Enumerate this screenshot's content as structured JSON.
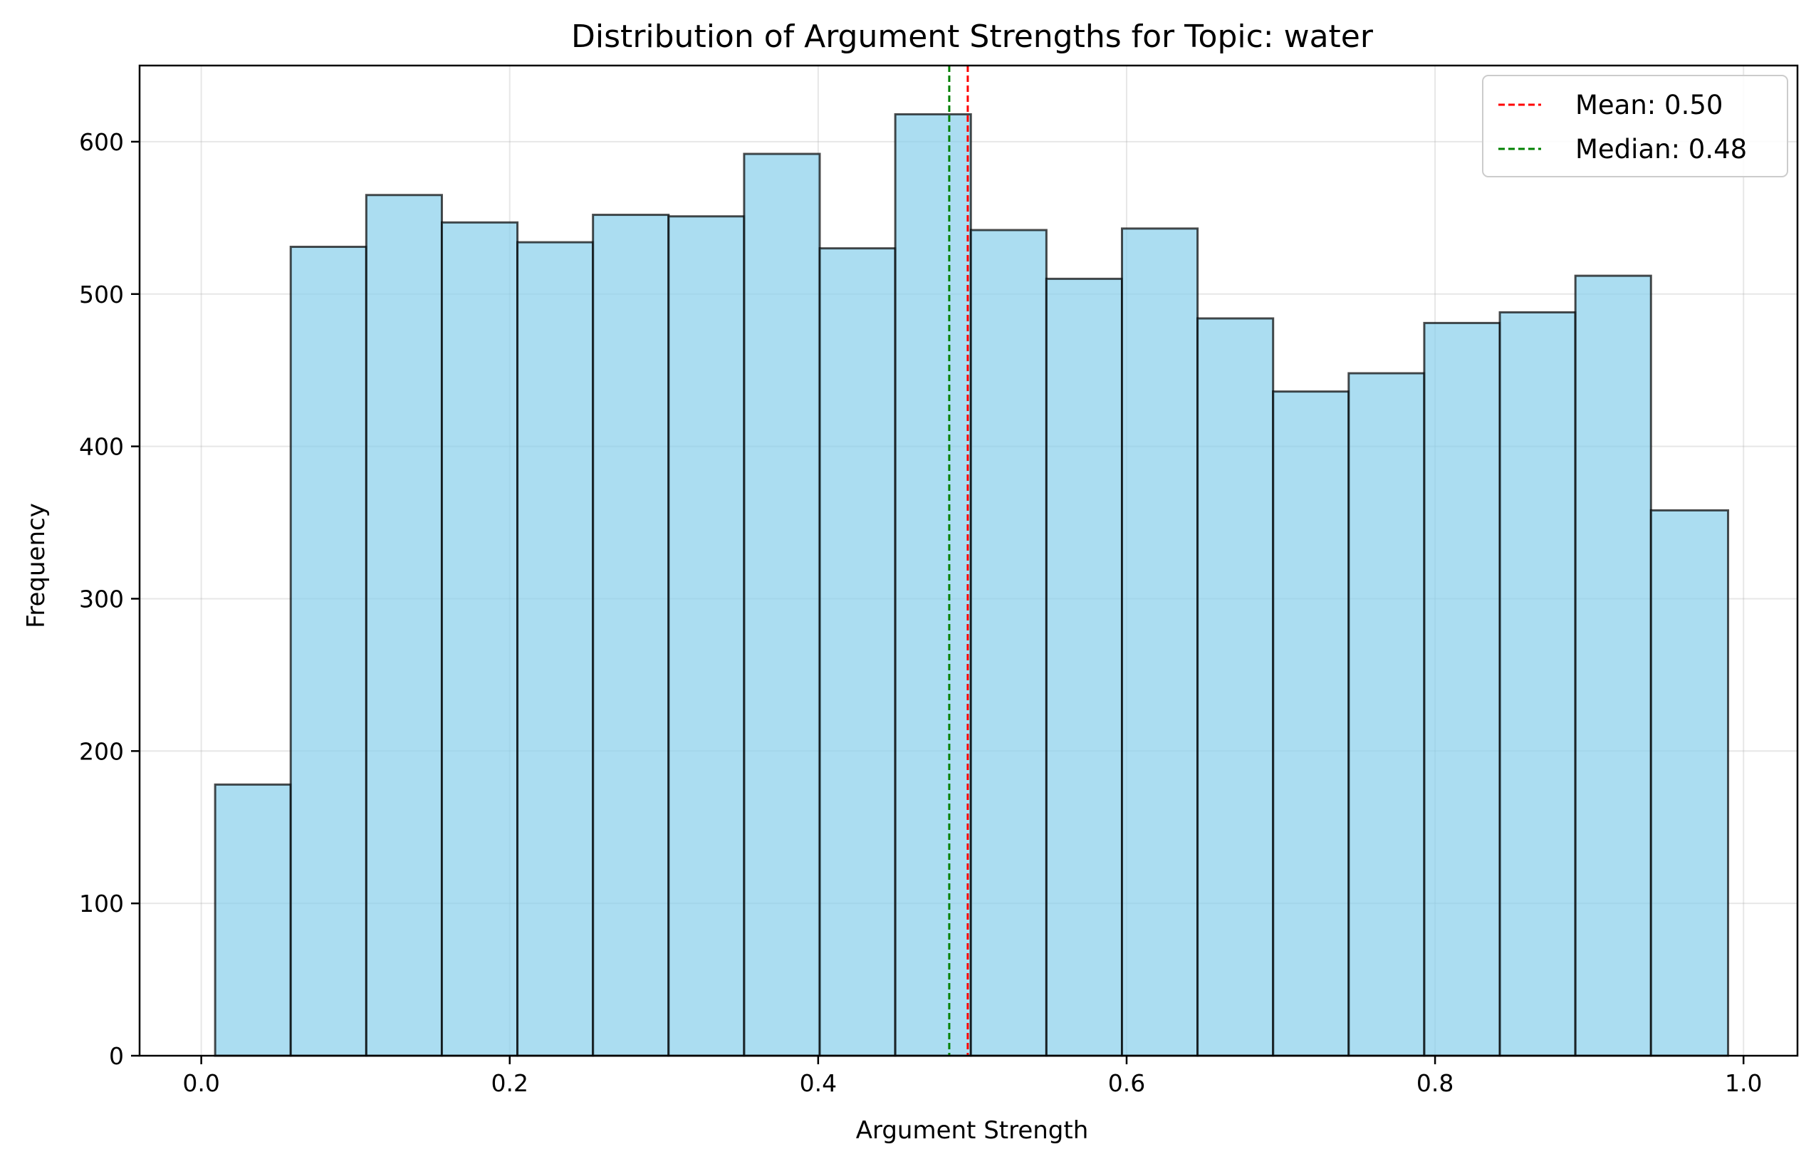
{
  "chart_data": {
    "type": "bar",
    "title": "Distribution of Argument Strengths for Topic: water",
    "xlabel": "Argument Strength",
    "ylabel": "Frequency",
    "xlim": [
      -0.04,
      1.035
    ],
    "ylim": [
      0,
      650
    ],
    "xticks": [
      0.0,
      0.2,
      0.4,
      0.6,
      0.8,
      1.0
    ],
    "xtick_labels": [
      "0.0",
      "0.2",
      "0.4",
      "0.6",
      "0.8",
      "1.0"
    ],
    "yticks": [
      0,
      100,
      200,
      300,
      400,
      500,
      600
    ],
    "ytick_labels": [
      "0",
      "100",
      "200",
      "300",
      "400",
      "500",
      "600"
    ],
    "grid": true,
    "legend_position": "top-right",
    "bin_edges": [
      0.009,
      0.058,
      0.107,
      0.156,
      0.205,
      0.254,
      0.303,
      0.352,
      0.401,
      0.45,
      0.499,
      0.548,
      0.597,
      0.646,
      0.695,
      0.744,
      0.793,
      0.842,
      0.891,
      0.94,
      0.99
    ],
    "values": [
      178,
      531,
      565,
      547,
      534,
      552,
      551,
      592,
      530,
      618,
      542,
      510,
      543,
      484,
      436,
      448,
      481,
      488,
      512,
      358
    ],
    "bar_color": "#87CEEB",
    "edge_color": "#000000",
    "reference_lines": [
      {
        "label": "Mean: 0.50",
        "value": 0.497,
        "color": "#ff0000"
      },
      {
        "label": "Median: 0.48",
        "value": 0.485,
        "color": "#008000"
      }
    ]
  }
}
